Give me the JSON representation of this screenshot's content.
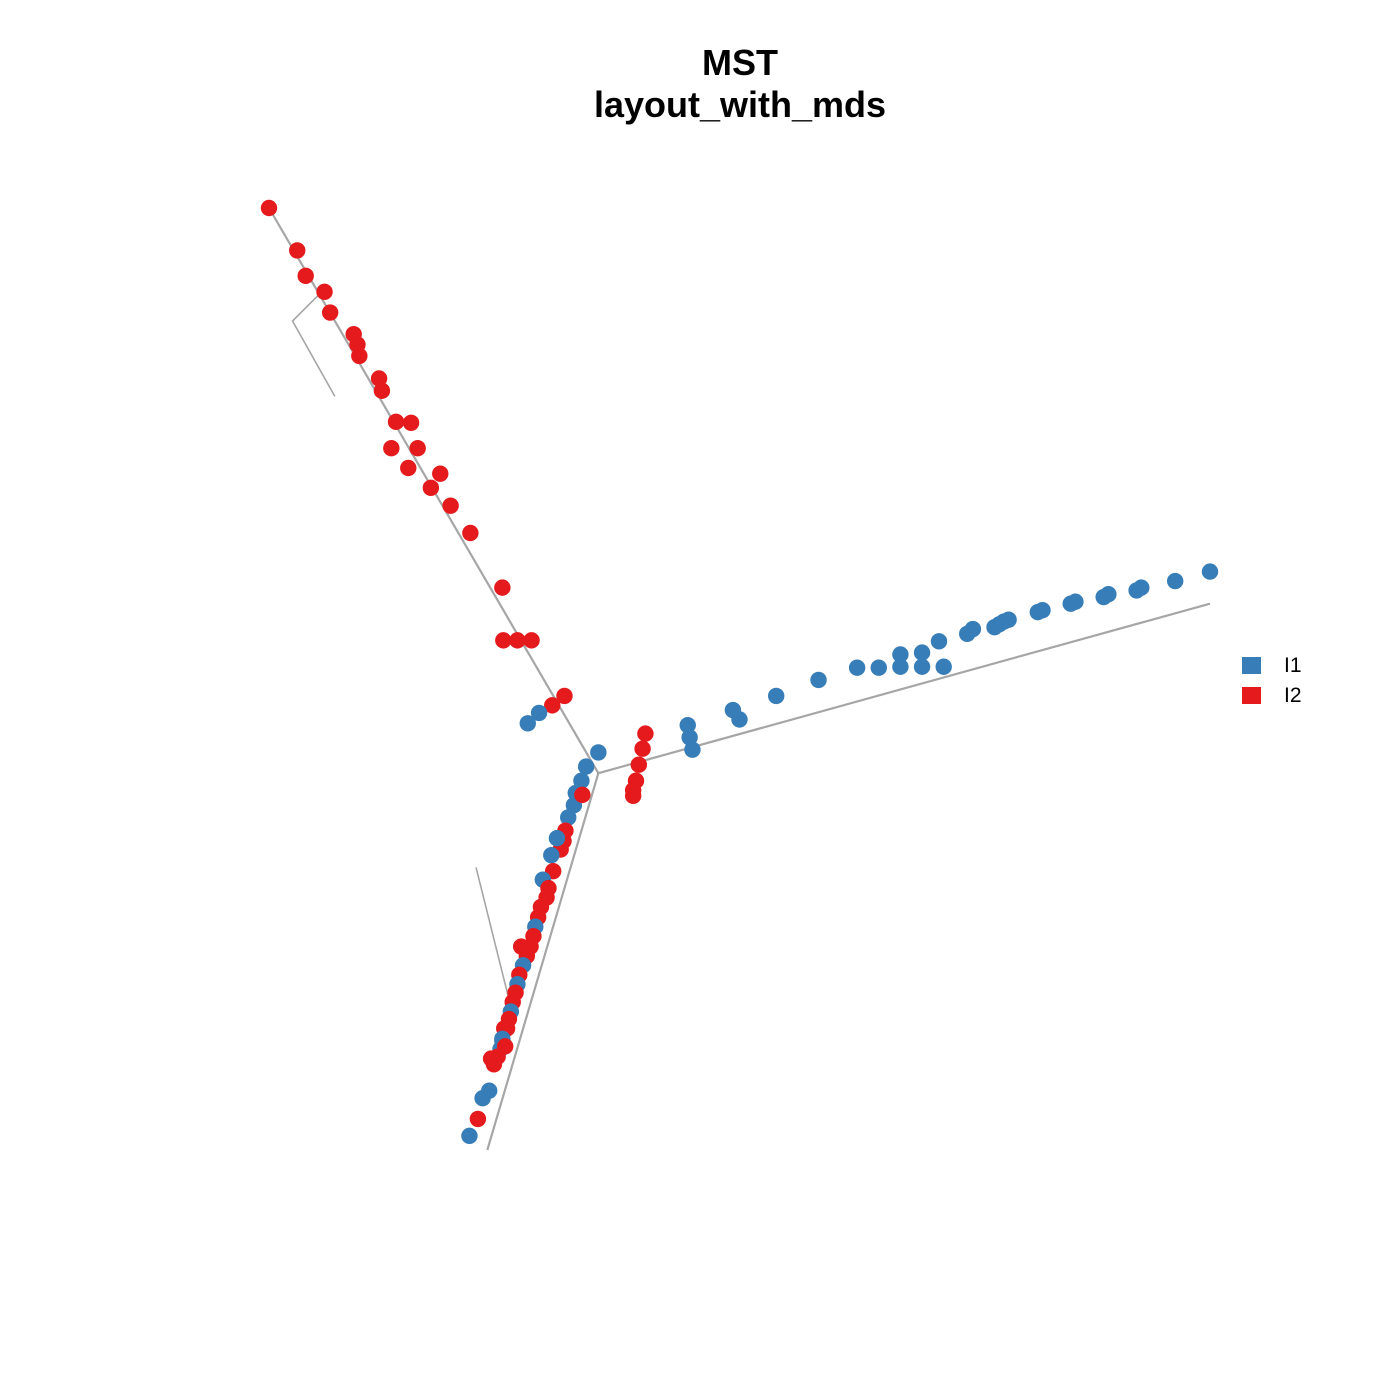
{
  "title": {
    "line1": "MST",
    "line2": "layout_with_mds"
  },
  "colors": {
    "I1": "#377eb8",
    "I2": "#e41a1c",
    "edge": "#a6a6a6"
  },
  "legend": [
    {
      "label": "I1",
      "color": "#377eb8"
    },
    {
      "label": "I2",
      "color": "#e41a1c"
    }
  ],
  "chart_data": {
    "type": "network",
    "layout": "mds",
    "node_groups": [
      "I1",
      "I2"
    ],
    "x_range": [
      0,
      1
    ],
    "y_range": [
      0,
      1
    ],
    "center": [
      0.35,
      0.4
    ],
    "edges_polyline": [
      [
        [
          0.0,
          1.0
        ],
        [
          0.35,
          0.4
        ],
        [
          1.0,
          0.58
        ]
      ],
      [
        [
          0.35,
          0.4
        ],
        [
          0.232,
          -0.0
        ]
      ]
    ],
    "branch_offsets": [
      [
        [
          0.06,
          0.915
        ],
        [
          0.025,
          0.88
        ],
        [
          0.07,
          0.8
        ]
      ],
      [
        [
          0.22,
          0.3
        ],
        [
          0.26,
          0.14
        ]
      ]
    ],
    "nodes": [
      {
        "x": 0.0,
        "y": 1.0,
        "g": "I2"
      },
      {
        "x": 0.03,
        "y": 0.955,
        "g": "I2"
      },
      {
        "x": 0.039,
        "y": 0.928,
        "g": "I2"
      },
      {
        "x": 0.059,
        "y": 0.911,
        "g": "I2"
      },
      {
        "x": 0.065,
        "y": 0.889,
        "g": "I2"
      },
      {
        "x": 0.09,
        "y": 0.866,
        "g": "I2"
      },
      {
        "x": 0.094,
        "y": 0.855,
        "g": "I2"
      },
      {
        "x": 0.096,
        "y": 0.843,
        "g": "I2"
      },
      {
        "x": 0.117,
        "y": 0.819,
        "g": "I2"
      },
      {
        "x": 0.12,
        "y": 0.806,
        "g": "I2"
      },
      {
        "x": 0.135,
        "y": 0.773,
        "g": "I2"
      },
      {
        "x": 0.151,
        "y": 0.772,
        "g": "I2"
      },
      {
        "x": 0.13,
        "y": 0.745,
        "g": "I2"
      },
      {
        "x": 0.158,
        "y": 0.745,
        "g": "I2"
      },
      {
        "x": 0.148,
        "y": 0.724,
        "g": "I2"
      },
      {
        "x": 0.182,
        "y": 0.718,
        "g": "I2"
      },
      {
        "x": 0.172,
        "y": 0.703,
        "g": "I2"
      },
      {
        "x": 0.193,
        "y": 0.684,
        "g": "I2"
      },
      {
        "x": 0.214,
        "y": 0.655,
        "g": "I2"
      },
      {
        "x": 0.248,
        "y": 0.597,
        "g": "I2"
      },
      {
        "x": 0.249,
        "y": 0.541,
        "g": "I2"
      },
      {
        "x": 0.264,
        "y": 0.541,
        "g": "I2"
      },
      {
        "x": 0.279,
        "y": 0.541,
        "g": "I2"
      },
      {
        "x": 0.314,
        "y": 0.482,
        "g": "I2"
      },
      {
        "x": 0.301,
        "y": 0.472,
        "g": "I2"
      },
      {
        "x": 0.287,
        "y": 0.464,
        "g": "I1"
      },
      {
        "x": 0.275,
        "y": 0.453,
        "g": "I1"
      },
      {
        "x": 0.35,
        "y": 0.422,
        "g": "I1"
      },
      {
        "x": 0.445,
        "y": 0.451,
        "g": "I1"
      },
      {
        "x": 0.447,
        "y": 0.438,
        "g": "I1"
      },
      {
        "x": 0.45,
        "y": 0.425,
        "g": "I1"
      },
      {
        "x": 0.493,
        "y": 0.467,
        "g": "I1"
      },
      {
        "x": 0.5,
        "y": 0.457,
        "g": "I1"
      },
      {
        "x": 0.539,
        "y": 0.482,
        "g": "I1"
      },
      {
        "x": 0.584,
        "y": 0.499,
        "g": "I1"
      },
      {
        "x": 0.625,
        "y": 0.512,
        "g": "I1"
      },
      {
        "x": 0.648,
        "y": 0.512,
        "g": "I1"
      },
      {
        "x": 0.671,
        "y": 0.526,
        "g": "I1"
      },
      {
        "x": 0.671,
        "y": 0.513,
        "g": "I1"
      },
      {
        "x": 0.694,
        "y": 0.528,
        "g": "I1"
      },
      {
        "x": 0.694,
        "y": 0.513,
        "g": "I1"
      },
      {
        "x": 0.717,
        "y": 0.513,
        "g": "I1"
      },
      {
        "x": 0.712,
        "y": 0.54,
        "g": "I1"
      },
      {
        "x": 0.742,
        "y": 0.548,
        "g": "I1"
      },
      {
        "x": 0.748,
        "y": 0.553,
        "g": "I1"
      },
      {
        "x": 0.771,
        "y": 0.555,
        "g": "I1"
      },
      {
        "x": 0.776,
        "y": 0.558,
        "g": "I1"
      },
      {
        "x": 0.781,
        "y": 0.561,
        "g": "I1"
      },
      {
        "x": 0.786,
        "y": 0.563,
        "g": "I1"
      },
      {
        "x": 0.817,
        "y": 0.571,
        "g": "I1"
      },
      {
        "x": 0.822,
        "y": 0.573,
        "g": "I1"
      },
      {
        "x": 0.852,
        "y": 0.58,
        "g": "I1"
      },
      {
        "x": 0.857,
        "y": 0.582,
        "g": "I1"
      },
      {
        "x": 0.887,
        "y": 0.587,
        "g": "I1"
      },
      {
        "x": 0.892,
        "y": 0.59,
        "g": "I1"
      },
      {
        "x": 0.922,
        "y": 0.594,
        "g": "I1"
      },
      {
        "x": 0.927,
        "y": 0.597,
        "g": "I1"
      },
      {
        "x": 0.963,
        "y": 0.604,
        "g": "I1"
      },
      {
        "x": 1.0,
        "y": 0.614,
        "g": "I1"
      },
      {
        "x": 0.4,
        "y": 0.442,
        "g": "I2"
      },
      {
        "x": 0.397,
        "y": 0.426,
        "g": "I2"
      },
      {
        "x": 0.393,
        "y": 0.409,
        "g": "I2"
      },
      {
        "x": 0.39,
        "y": 0.392,
        "g": "I2"
      },
      {
        "x": 0.387,
        "y": 0.382,
        "g": "I2"
      },
      {
        "x": 0.387,
        "y": 0.376,
        "g": "I2"
      },
      {
        "x": 0.337,
        "y": 0.407,
        "g": "I1"
      },
      {
        "x": 0.332,
        "y": 0.392,
        "g": "I1"
      },
      {
        "x": 0.326,
        "y": 0.379,
        "g": "I1"
      },
      {
        "x": 0.324,
        "y": 0.366,
        "g": "I1"
      },
      {
        "x": 0.318,
        "y": 0.353,
        "g": "I1"
      },
      {
        "x": 0.333,
        "y": 0.377,
        "g": "I2"
      },
      {
        "x": 0.315,
        "y": 0.339,
        "g": "I2"
      },
      {
        "x": 0.313,
        "y": 0.328,
        "g": "I2"
      },
      {
        "x": 0.31,
        "y": 0.319,
        "g": "I2"
      },
      {
        "x": 0.306,
        "y": 0.331,
        "g": "I1"
      },
      {
        "x": 0.3,
        "y": 0.313,
        "g": "I1"
      },
      {
        "x": 0.302,
        "y": 0.296,
        "g": "I2"
      },
      {
        "x": 0.291,
        "y": 0.287,
        "g": "I1"
      },
      {
        "x": 0.297,
        "y": 0.278,
        "g": "I2"
      },
      {
        "x": 0.295,
        "y": 0.268,
        "g": "I2"
      },
      {
        "x": 0.289,
        "y": 0.258,
        "g": "I2"
      },
      {
        "x": 0.286,
        "y": 0.247,
        "g": "I2"
      },
      {
        "x": 0.283,
        "y": 0.237,
        "g": "I1"
      },
      {
        "x": 0.281,
        "y": 0.227,
        "g": "I2"
      },
      {
        "x": 0.278,
        "y": 0.216,
        "g": "I2"
      },
      {
        "x": 0.268,
        "y": 0.216,
        "g": "I2"
      },
      {
        "x": 0.274,
        "y": 0.206,
        "g": "I2"
      },
      {
        "x": 0.27,
        "y": 0.196,
        "g": "I1"
      },
      {
        "x": 0.266,
        "y": 0.186,
        "g": "I2"
      },
      {
        "x": 0.264,
        "y": 0.176,
        "g": "I1"
      },
      {
        "x": 0.262,
        "y": 0.167,
        "g": "I2"
      },
      {
        "x": 0.259,
        "y": 0.157,
        "g": "I2"
      },
      {
        "x": 0.257,
        "y": 0.147,
        "g": "I1"
      },
      {
        "x": 0.255,
        "y": 0.139,
        "g": "I2"
      },
      {
        "x": 0.253,
        "y": 0.129,
        "g": "I2"
      },
      {
        "x": 0.25,
        "y": 0.129,
        "g": "I2"
      },
      {
        "x": 0.248,
        "y": 0.116,
        "g": "I1"
      },
      {
        "x": 0.246,
        "y": 0.107,
        "g": "I1"
      },
      {
        "x": 0.243,
        "y": 0.099,
        "g": "I2"
      },
      {
        "x": 0.239,
        "y": 0.091,
        "g": "I2"
      },
      {
        "x": 0.236,
        "y": 0.097,
        "g": "I2"
      },
      {
        "x": 0.234,
        "y": 0.063,
        "g": "I1"
      },
      {
        "x": 0.227,
        "y": 0.055,
        "g": "I1"
      },
      {
        "x": 0.222,
        "y": 0.033,
        "g": "I2"
      },
      {
        "x": 0.213,
        "y": 0.015,
        "g": "I1"
      },
      {
        "x": 0.248,
        "y": 0.118,
        "g": "I1"
      },
      {
        "x": 0.251,
        "y": 0.11,
        "g": "I2"
      }
    ]
  }
}
